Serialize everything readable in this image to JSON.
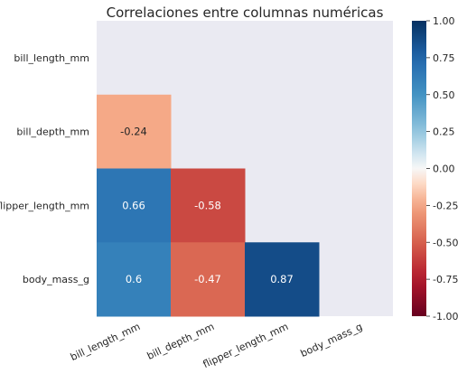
{
  "chart_data": {
    "type": "heatmap",
    "title": "Correlaciones entre columnas numéricas",
    "rows": [
      "bill_length_mm",
      "bill_depth_mm",
      "flipper_length_mm",
      "body_mass_g"
    ],
    "columns": [
      "bill_length_mm",
      "bill_depth_mm",
      "flipper_length_mm",
      "body_mass_g"
    ],
    "cells": [
      {
        "row": "bill_depth_mm",
        "col": "bill_length_mm",
        "value": -0.24,
        "label": "-0.24"
      },
      {
        "row": "flipper_length_mm",
        "col": "bill_length_mm",
        "value": 0.66,
        "label": "0.66"
      },
      {
        "row": "flipper_length_mm",
        "col": "bill_depth_mm",
        "value": -0.58,
        "label": "-0.58"
      },
      {
        "row": "body_mass_g",
        "col": "bill_length_mm",
        "value": 0.6,
        "label": "0.6"
      },
      {
        "row": "body_mass_g",
        "col": "bill_depth_mm",
        "value": -0.47,
        "label": "-0.47"
      },
      {
        "row": "body_mass_g",
        "col": "flipper_length_mm",
        "value": 0.87,
        "label": "0.87"
      }
    ],
    "mask": "upper triangle incl. diagonal",
    "colormap": "RdBu",
    "vmin": -1.0,
    "vmax": 1.0,
    "colorbar_ticks": [
      "1.00",
      "0.75",
      "0.50",
      "0.25",
      "0.00",
      "-0.25",
      "-0.50",
      "-0.75",
      "-1.00"
    ],
    "masked_color": "#eaeaf2"
  }
}
